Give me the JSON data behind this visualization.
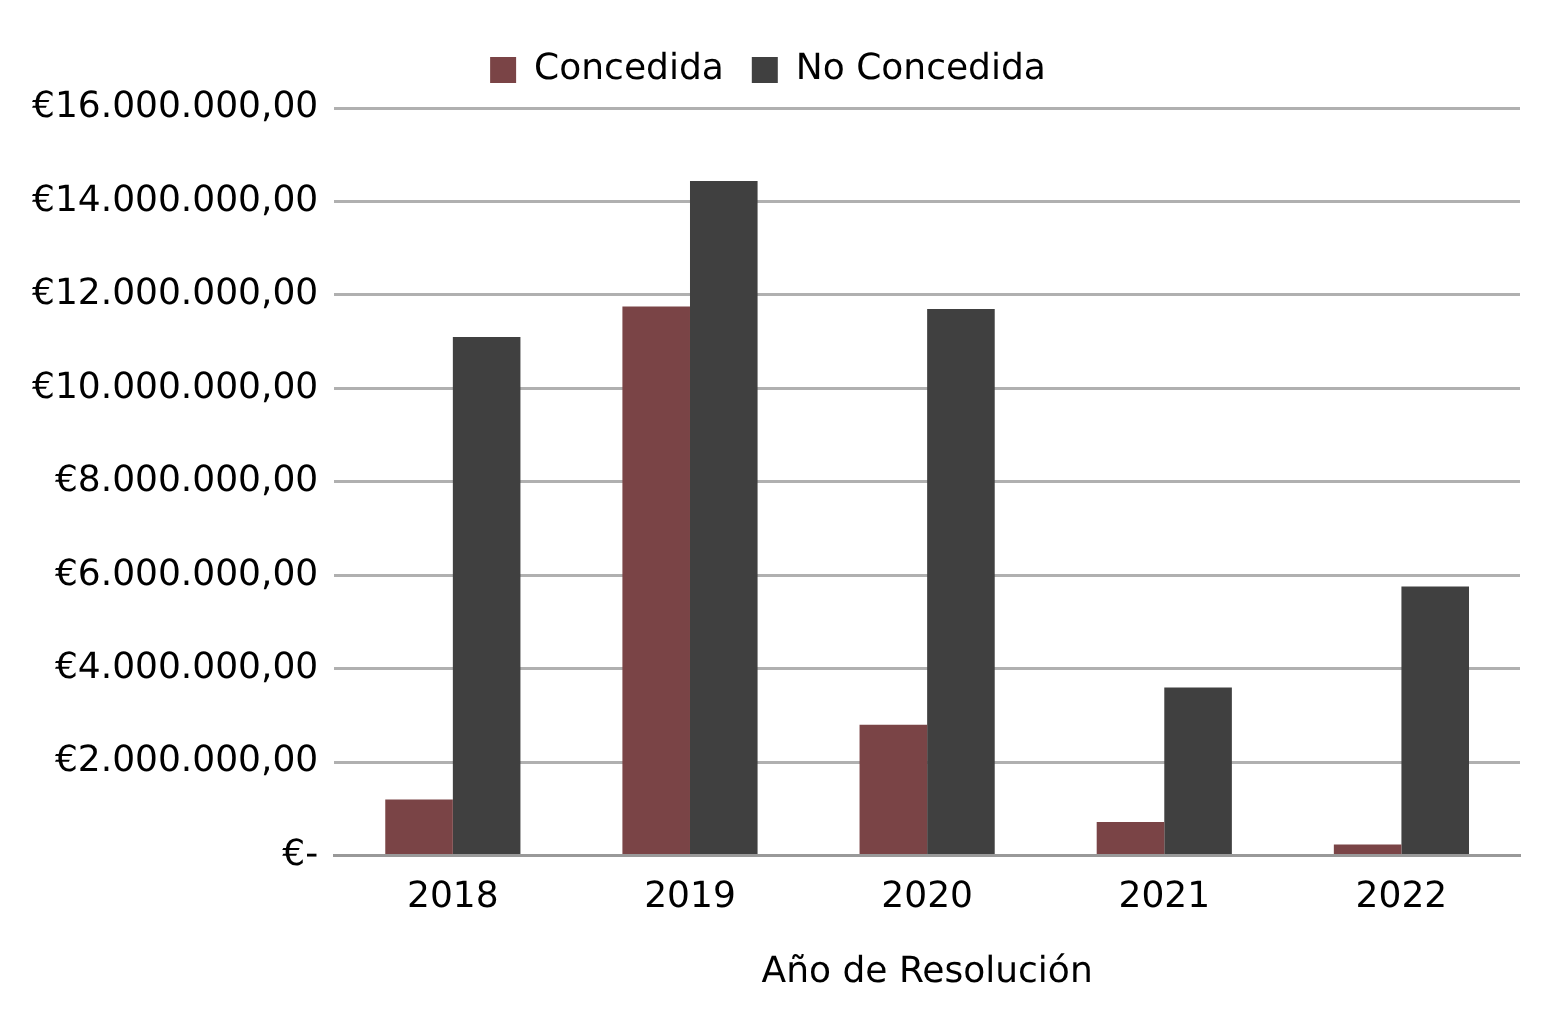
{
  "chart_data": {
    "type": "bar",
    "xlabel": "Año de Resolución",
    "categories": [
      "2018",
      "2019",
      "2020",
      "2021",
      "2022"
    ],
    "series": [
      {
        "name": "Concedida",
        "color": "#7a4446",
        "values": [
          1200000,
          11750000,
          2800000,
          720000,
          240000
        ]
      },
      {
        "name": "No Concedida",
        "color": "#404040",
        "values": [
          11100000,
          14440000,
          11700000,
          3600000,
          5760000
        ]
      }
    ],
    "ylim": [
      0,
      16000000
    ],
    "yticks": [
      {
        "value": 0,
        "label": "€-"
      },
      {
        "value": 2000000,
        "label": "€2.000.000,00"
      },
      {
        "value": 4000000,
        "label": "€4.000.000,00"
      },
      {
        "value": 6000000,
        "label": "€6.000.000,00"
      },
      {
        "value": 8000000,
        "label": "€8.000.000,00"
      },
      {
        "value": 10000000,
        "label": "€10.000.000,00"
      },
      {
        "value": 12000000,
        "label": "€12.000.000,00"
      },
      {
        "value": 14000000,
        "label": "€14.000.000,00"
      },
      {
        "value": 16000000,
        "label": "€16.000.000,00"
      }
    ],
    "grid": "y",
    "legend": "top"
  }
}
